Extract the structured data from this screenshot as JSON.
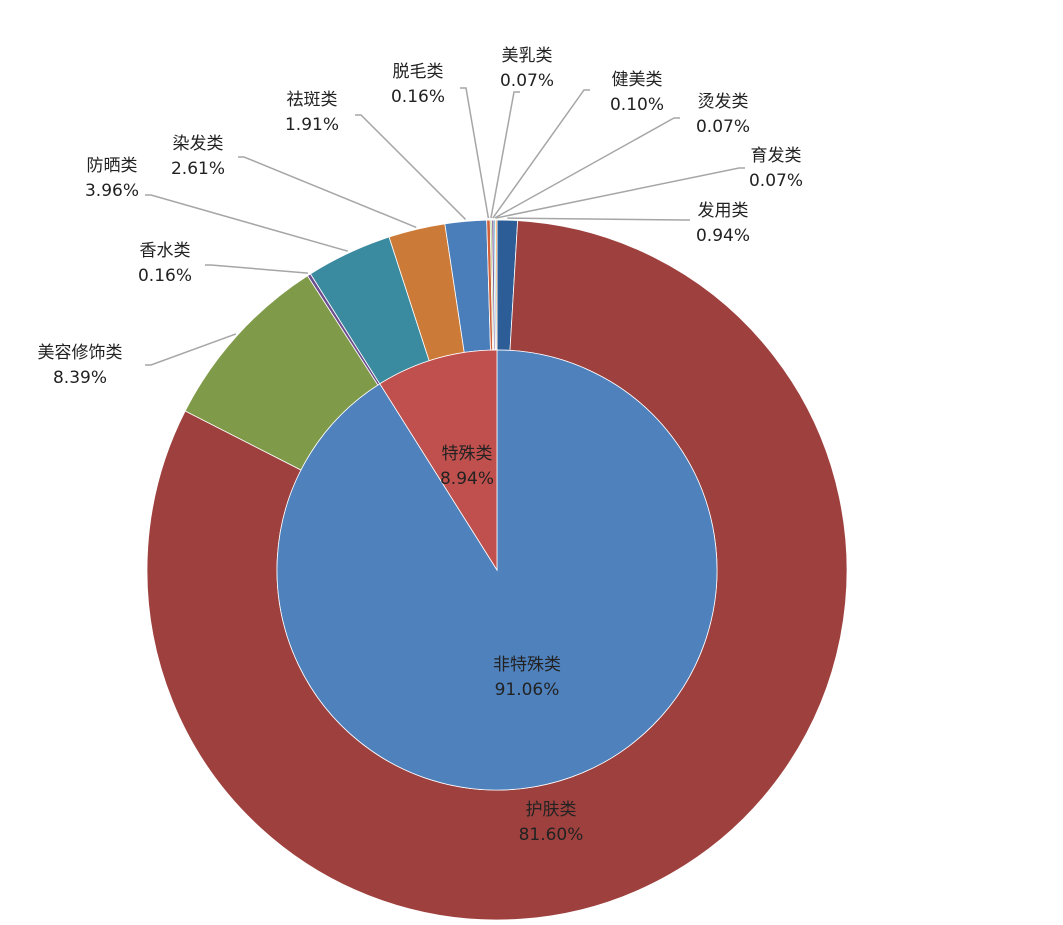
{
  "chart_data": {
    "type": "pie",
    "inner": {
      "categories": [
        "非特殊类",
        "特殊类"
      ],
      "values": [
        91.06,
        8.94
      ],
      "value_labels": [
        "91.06%",
        "8.94%"
      ],
      "colors": [
        "#4f81bd",
        "#c0504d"
      ]
    },
    "outer": {
      "categories": [
        "发用类",
        "护肤类",
        "美容修饰类",
        "香水类",
        "防晒类",
        "染发类",
        "祛斑类",
        "脱毛类",
        "美乳类",
        "健美类",
        "烫发类",
        "育发类"
      ],
      "values": [
        0.94,
        81.6,
        8.39,
        0.16,
        3.96,
        2.61,
        1.91,
        0.16,
        0.07,
        0.1,
        0.07,
        0.07
      ],
      "value_labels": [
        "0.94%",
        "81.60%",
        "8.39%",
        "0.16%",
        "3.96%",
        "2.61%",
        "1.91%",
        "0.16%",
        "0.07%",
        "0.10%",
        "0.07%",
        "0.07%"
      ],
      "colors": [
        "#2c5d96",
        "#9e413e",
        "#7f9a48",
        "#6b4c8d",
        "#3b8ba0",
        "#cc7a37",
        "#4a7ebb",
        "#d0603a",
        "#9bbb59",
        "#8064a2",
        "#4bacc6",
        "#f79646"
      ]
    }
  }
}
